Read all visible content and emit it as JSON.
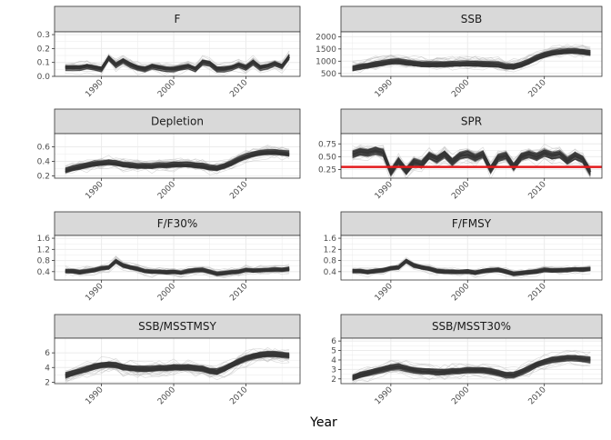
{
  "figure": {
    "xlabel": "Year"
  },
  "colors": {
    "strip_fill": "#d9d9d9",
    "strip_border": "#333333",
    "panel_border": "#333333",
    "grid": "#ebebeb",
    "median_line": "#333333",
    "sim_line": "#8c8c8c",
    "reference_line": "#e31a1c"
  },
  "chart_data": [
    {
      "type": "line",
      "title": "F",
      "x": [
        1985,
        1986,
        1987,
        1988,
        1989,
        1990,
        1991,
        1992,
        1993,
        1994,
        1995,
        1996,
        1997,
        1998,
        1999,
        2000,
        2001,
        2002,
        2003,
        2004,
        2005,
        2006,
        2007,
        2008,
        2009,
        2010,
        2011,
        2012,
        2013,
        2014,
        2015,
        2016
      ],
      "series": [
        {
          "values": [
            0.06,
            0.06,
            0.06,
            0.07,
            0.06,
            0.05,
            0.13,
            0.08,
            0.11,
            0.08,
            0.06,
            0.05,
            0.07,
            0.06,
            0.05,
            0.05,
            0.06,
            0.07,
            0.05,
            0.1,
            0.09,
            0.05,
            0.05,
            0.06,
            0.08,
            0.06,
            0.1,
            0.06,
            0.07,
            0.09,
            0.07,
            0.14
          ]
        }
      ],
      "band": 0.018,
      "ylim": [
        0,
        0.32
      ],
      "yticks": [
        "0.0",
        "0.1",
        "0.2",
        "0.3"
      ],
      "ytick_values": [
        0.0,
        0.1,
        0.2,
        0.3
      ],
      "xticks": [
        "1990",
        "2000",
        "2010"
      ],
      "xtick_values": [
        1990,
        2000,
        2010
      ]
    },
    {
      "type": "line",
      "title": "SSB",
      "x": [
        1985,
        1986,
        1987,
        1988,
        1989,
        1990,
        1991,
        1992,
        1993,
        1994,
        1995,
        1996,
        1997,
        1998,
        1999,
        2000,
        2001,
        2002,
        2003,
        2004,
        2005,
        2006,
        2007,
        2008,
        2009,
        2010,
        2011,
        2012,
        2013,
        2014,
        2015,
        2016
      ],
      "series": [
        {
          "values": [
            720,
            780,
            830,
            890,
            940,
            990,
            1000,
            960,
            920,
            890,
            880,
            880,
            890,
            900,
            900,
            910,
            910,
            900,
            890,
            870,
            800,
            790,
            870,
            1000,
            1150,
            1270,
            1350,
            1390,
            1420,
            1420,
            1400,
            1350
          ]
        }
      ],
      "band": 110,
      "ylim": [
        380,
        2200
      ],
      "yticks": [
        "500",
        "1000",
        "1500",
        "2000"
      ],
      "ytick_values": [
        500,
        1000,
        1500,
        2000
      ],
      "xticks": [
        "1990",
        "2000",
        "2010"
      ],
      "xtick_values": [
        1990,
        2000,
        2010
      ]
    },
    {
      "type": "line",
      "title": "Depletion",
      "x": [
        1985,
        1986,
        1987,
        1988,
        1989,
        1990,
        1991,
        1992,
        1993,
        1994,
        1995,
        1996,
        1997,
        1998,
        1999,
        2000,
        2001,
        2002,
        2003,
        2004,
        2005,
        2006,
        2007,
        2008,
        2009,
        2010,
        2011,
        2012,
        2013,
        2014,
        2015,
        2016
      ],
      "series": [
        {
          "values": [
            0.28,
            0.31,
            0.33,
            0.35,
            0.37,
            0.38,
            0.39,
            0.38,
            0.36,
            0.35,
            0.34,
            0.34,
            0.34,
            0.35,
            0.35,
            0.36,
            0.36,
            0.36,
            0.35,
            0.34,
            0.32,
            0.31,
            0.34,
            0.38,
            0.43,
            0.47,
            0.5,
            0.52,
            0.53,
            0.53,
            0.52,
            0.51
          ]
        }
      ],
      "band": 0.035,
      "ylim": [
        0.17,
        0.78
      ],
      "yticks": [
        "0.2",
        "0.4",
        "0.6"
      ],
      "ytick_values": [
        0.2,
        0.4,
        0.6
      ],
      "xticks": [
        "1990",
        "2000",
        "2010"
      ],
      "xtick_values": [
        1990,
        2000,
        2010
      ]
    },
    {
      "type": "line",
      "title": "SPR",
      "x": [
        1985,
        1986,
        1987,
        1988,
        1989,
        1990,
        1991,
        1992,
        1993,
        1994,
        1995,
        1996,
        1997,
        1998,
        1999,
        2000,
        2001,
        2002,
        2003,
        2004,
        2005,
        2006,
        2007,
        2008,
        2009,
        2010,
        2011,
        2012,
        2013,
        2014,
        2015,
        2016
      ],
      "series": [
        {
          "values": [
            0.55,
            0.6,
            0.58,
            0.62,
            0.58,
            0.2,
            0.42,
            0.22,
            0.4,
            0.35,
            0.52,
            0.45,
            0.55,
            0.4,
            0.52,
            0.55,
            0.48,
            0.55,
            0.25,
            0.48,
            0.52,
            0.3,
            0.5,
            0.55,
            0.5,
            0.58,
            0.52,
            0.55,
            0.42,
            0.52,
            0.45,
            0.2
          ]
        }
      ],
      "band": 0.07,
      "reference": 0.3,
      "ylim": [
        0.08,
        0.95
      ],
      "yticks": [
        "0.25",
        "0.50",
        "0.75"
      ],
      "ytick_values": [
        0.25,
        0.5,
        0.75
      ],
      "xticks": [
        "1990",
        "2000",
        "2010"
      ],
      "xtick_values": [
        1990,
        2000,
        2010
      ]
    },
    {
      "type": "line",
      "title": "F/F30%",
      "x": [
        1985,
        1986,
        1987,
        1988,
        1989,
        1990,
        1991,
        1992,
        1993,
        1994,
        1995,
        1996,
        1997,
        1998,
        1999,
        2000,
        2001,
        2002,
        2003,
        2004,
        2005,
        2006,
        2007,
        2008,
        2009,
        2010,
        2011,
        2012,
        2013,
        2014,
        2015,
        2016
      ],
      "series": [
        {
          "values": [
            0.42,
            0.42,
            0.38,
            0.42,
            0.45,
            0.52,
            0.55,
            0.78,
            0.62,
            0.55,
            0.5,
            0.42,
            0.4,
            0.4,
            0.38,
            0.4,
            0.36,
            0.42,
            0.45,
            0.46,
            0.4,
            0.32,
            0.35,
            0.38,
            0.4,
            0.46,
            0.44,
            0.45,
            0.46,
            0.48,
            0.47,
            0.5
          ]
        }
      ],
      "band": 0.07,
      "ylim": [
        0.1,
        1.7
      ],
      "yticks": [
        "0.4",
        "0.8",
        "1.2",
        "1.6"
      ],
      "ytick_values": [
        0.4,
        0.8,
        1.2,
        1.6
      ],
      "xticks": [
        "1990",
        "2000",
        "2010"
      ],
      "xtick_values": [
        1990,
        2000,
        2010
      ]
    },
    {
      "type": "line",
      "title": "F/FMSY",
      "x": [
        1985,
        1986,
        1987,
        1988,
        1989,
        1990,
        1991,
        1992,
        1993,
        1994,
        1995,
        1996,
        1997,
        1998,
        1999,
        2000,
        2001,
        2002,
        2003,
        2004,
        2005,
        2006,
        2007,
        2008,
        2009,
        2010,
        2011,
        2012,
        2013,
        2014,
        2015,
        2016
      ],
      "series": [
        {
          "values": [
            0.42,
            0.42,
            0.38,
            0.42,
            0.45,
            0.52,
            0.55,
            0.78,
            0.62,
            0.55,
            0.5,
            0.42,
            0.4,
            0.4,
            0.38,
            0.4,
            0.36,
            0.42,
            0.45,
            0.46,
            0.4,
            0.32,
            0.35,
            0.38,
            0.4,
            0.46,
            0.44,
            0.45,
            0.46,
            0.48,
            0.47,
            0.5
          ]
        }
      ],
      "band": 0.07,
      "ylim": [
        0.1,
        1.7
      ],
      "yticks": [
        "0.4",
        "0.8",
        "1.2",
        "1.6"
      ],
      "ytick_values": [
        0.4,
        0.8,
        1.2,
        1.6
      ],
      "xticks": [
        "1990",
        "2000",
        "2010"
      ],
      "xtick_values": [
        1990,
        2000,
        2010
      ]
    },
    {
      "type": "line",
      "title": "SSB/MSSTMSY",
      "x": [
        1985,
        1986,
        1987,
        1988,
        1989,
        1990,
        1991,
        1992,
        1993,
        1994,
        1995,
        1996,
        1997,
        1998,
        1999,
        2000,
        2001,
        2002,
        2003,
        2004,
        2005,
        2006,
        2007,
        2008,
        2009,
        2010,
        2011,
        2012,
        2013,
        2014,
        2015,
        2016
      ],
      "series": [
        {
          "values": [
            2.9,
            3.2,
            3.5,
            3.8,
            4.1,
            4.3,
            4.4,
            4.3,
            4.0,
            3.9,
            3.8,
            3.8,
            3.8,
            3.9,
            3.9,
            4.0,
            4.0,
            4.0,
            3.9,
            3.8,
            3.5,
            3.4,
            3.8,
            4.3,
            4.8,
            5.2,
            5.5,
            5.7,
            5.8,
            5.8,
            5.7,
            5.6
          ]
        }
      ],
      "band": 0.4,
      "ylim": [
        1.8,
        8.0
      ],
      "yticks": [
        "2",
        "4",
        "6"
      ],
      "ytick_values": [
        2,
        4,
        6
      ],
      "xticks": [
        "1990",
        "2000",
        "2010"
      ],
      "xtick_values": [
        1990,
        2000,
        2010
      ]
    },
    {
      "type": "line",
      "title": "SSB/MSST30%",
      "x": [
        1985,
        1986,
        1987,
        1988,
        1989,
        1990,
        1991,
        1992,
        1993,
        1994,
        1995,
        1996,
        1997,
        1998,
        1999,
        2000,
        2001,
        2002,
        2003,
        2004,
        2005,
        2006,
        2007,
        2008,
        2009,
        2010,
        2011,
        2012,
        2013,
        2014,
        2015,
        2016
      ],
      "series": [
        {
          "values": [
            2.1,
            2.4,
            2.6,
            2.8,
            3.0,
            3.2,
            3.3,
            3.1,
            2.9,
            2.8,
            2.8,
            2.7,
            2.7,
            2.8,
            2.8,
            2.9,
            2.9,
            2.9,
            2.8,
            2.6,
            2.4,
            2.4,
            2.7,
            3.1,
            3.5,
            3.8,
            4.0,
            4.1,
            4.2,
            4.2,
            4.1,
            4.0
          ]
        }
      ],
      "band": 0.3,
      "ylim": [
        1.5,
        6.3
      ],
      "yticks": [
        "2",
        "3",
        "4",
        "5",
        "6"
      ],
      "ytick_values": [
        2,
        3,
        4,
        5,
        6
      ],
      "xticks": [
        "1990",
        "2000",
        "2010"
      ],
      "xtick_values": [
        1990,
        2000,
        2010
      ]
    }
  ]
}
